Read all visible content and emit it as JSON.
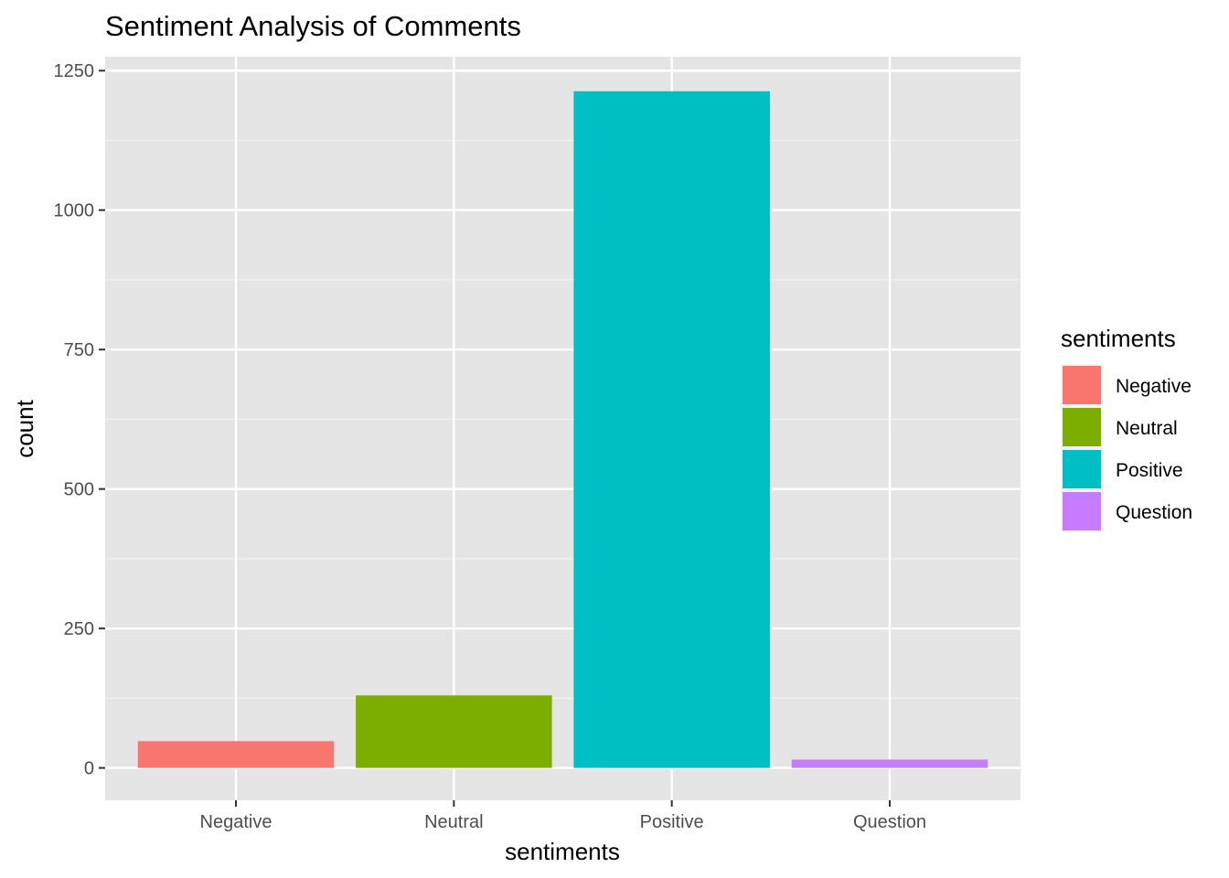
{
  "chart_data": {
    "type": "bar",
    "title": "Sentiment Analysis of Comments",
    "xlabel": "sentiments",
    "ylabel": "count",
    "categories": [
      "Negative",
      "Neutral",
      "Positive",
      "Question"
    ],
    "values": [
      48,
      130,
      1213,
      15
    ],
    "colors": [
      "#F8766D",
      "#7CAE00",
      "#00BFC4",
      "#C77CFF"
    ],
    "ylim": [
      -58,
      1275
    ],
    "yticks": [
      0,
      250,
      500,
      750,
      1000,
      1250
    ],
    "grid": true,
    "panel_background": "#e5e5e5",
    "legend": {
      "title": "sentiments",
      "position": "right",
      "entries": [
        "Negative",
        "Neutral",
        "Positive",
        "Question"
      ]
    }
  }
}
